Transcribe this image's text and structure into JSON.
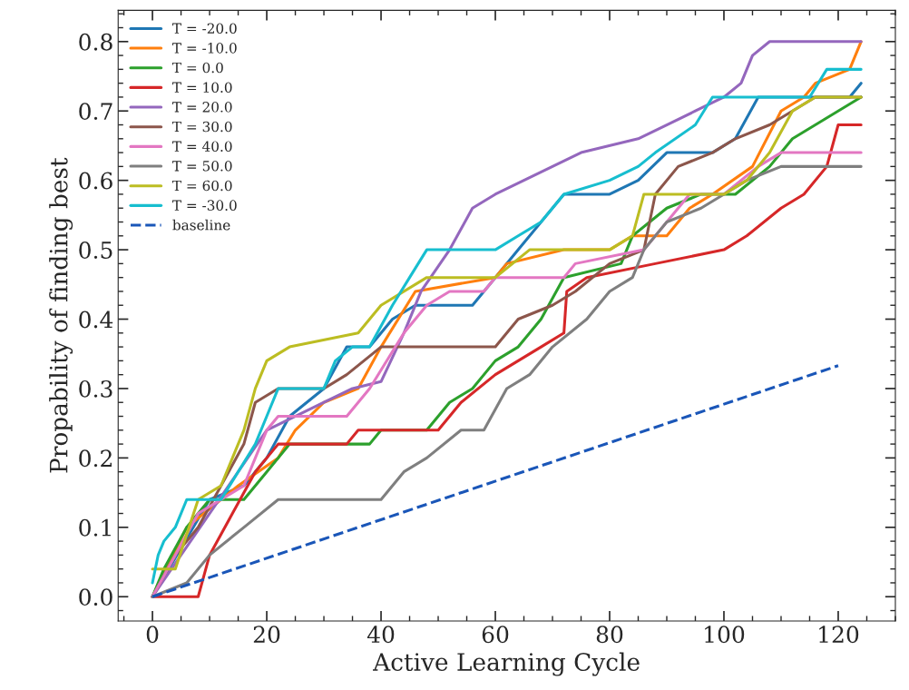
{
  "chart_data": {
    "type": "line",
    "xlabel": "Active Learning Cycle",
    "ylabel": "Propability of finding best",
    "xlim": [
      -6,
      130
    ],
    "ylim": [
      -0.035,
      0.845
    ],
    "xticks": [
      0,
      20,
      40,
      60,
      80,
      100,
      120
    ],
    "yticks": [
      {
        "value": 0,
        "label": "0.0"
      },
      0.1,
      0.2,
      0.3,
      0.4,
      0.5,
      0.6,
      0.7,
      0.8
    ],
    "grid": false,
    "legend": "top left",
    "marker": "none",
    "series": [
      {
        "name": "T = -20.0",
        "color": "#1f77b4",
        "x": [
          0,
          10,
          16,
          20,
          24,
          30,
          34,
          38,
          42,
          46,
          56,
          60,
          64,
          68,
          72,
          80,
          85,
          90,
          98,
          102,
          106,
          122,
          124
        ],
        "values": [
          0,
          0.14,
          0.16,
          0.2,
          0.26,
          0.3,
          0.36,
          0.36,
          0.4,
          0.42,
          0.42,
          0.46,
          0.5,
          0.54,
          0.58,
          0.58,
          0.6,
          0.64,
          0.64,
          0.66,
          0.72,
          0.72,
          0.74
        ]
      },
      {
        "name": "T = -10.0",
        "color": "#ff7f0e",
        "x": [
          0,
          6,
          15,
          22,
          25,
          30,
          36,
          40,
          46,
          60,
          62,
          72,
          80,
          84,
          90,
          94,
          98,
          105,
          110,
          114,
          116,
          122,
          124
        ],
        "values": [
          0,
          0.1,
          0.16,
          0.2,
          0.24,
          0.28,
          0.3,
          0.36,
          0.44,
          0.46,
          0.48,
          0.5,
          0.5,
          0.52,
          0.52,
          0.56,
          0.58,
          0.62,
          0.7,
          0.72,
          0.74,
          0.76,
          0.8
        ]
      },
      {
        "name": "T = 0.0",
        "color": "#2ca02c",
        "x": [
          0,
          2,
          6,
          10,
          16,
          20,
          24,
          38,
          40,
          48,
          52,
          56,
          60,
          64,
          68,
          72,
          82,
          84,
          90,
          96,
          102,
          108,
          112,
          116,
          120,
          124
        ],
        "values": [
          0,
          0.04,
          0.1,
          0.14,
          0.14,
          0.18,
          0.22,
          0.22,
          0.24,
          0.24,
          0.28,
          0.3,
          0.34,
          0.36,
          0.4,
          0.46,
          0.48,
          0.52,
          0.56,
          0.58,
          0.58,
          0.62,
          0.66,
          0.68,
          0.7,
          0.72
        ]
      },
      {
        "name": "T = 10.0",
        "color": "#d62728",
        "x": [
          0,
          8,
          10,
          14,
          18,
          22,
          34,
          36,
          50,
          54,
          60,
          64,
          68,
          72,
          72.5,
          76,
          88,
          100,
          104,
          110,
          114,
          118,
          120,
          124
        ],
        "values": [
          0,
          0,
          0.06,
          0.12,
          0.18,
          0.22,
          0.22,
          0.24,
          0.24,
          0.28,
          0.32,
          0.34,
          0.36,
          0.38,
          0.44,
          0.46,
          0.48,
          0.5,
          0.52,
          0.56,
          0.58,
          0.62,
          0.68,
          0.68
        ]
      },
      {
        "name": "T = 20.0",
        "color": "#9467bd",
        "x": [
          0,
          20,
          30,
          35,
          40,
          44,
          47,
          52,
          56,
          60,
          65,
          70,
          75,
          85,
          90,
          95,
          100,
          103,
          105,
          108,
          124
        ],
        "values": [
          0,
          0.24,
          0.28,
          0.3,
          0.31,
          0.38,
          0.44,
          0.5,
          0.56,
          0.58,
          0.6,
          0.62,
          0.64,
          0.66,
          0.68,
          0.7,
          0.72,
          0.74,
          0.78,
          0.8,
          0.8
        ]
      },
      {
        "name": "T = 30.0",
        "color": "#8c564b",
        "x": [
          0,
          4,
          8,
          12,
          16,
          18,
          22,
          30,
          34,
          40,
          60,
          64,
          70,
          74,
          80,
          86,
          88,
          92,
          98,
          102,
          108,
          112,
          116,
          124
        ],
        "values": [
          0,
          0.06,
          0.1,
          0.16,
          0.22,
          0.28,
          0.3,
          0.3,
          0.32,
          0.36,
          0.36,
          0.4,
          0.42,
          0.44,
          0.48,
          0.5,
          0.58,
          0.62,
          0.64,
          0.66,
          0.68,
          0.7,
          0.72,
          0.72
        ]
      },
      {
        "name": "T = 40.0",
        "color": "#e377c2",
        "x": [
          0,
          4,
          8,
          16,
          20,
          22,
          34,
          38,
          44,
          48,
          52,
          58,
          60,
          72,
          74,
          86,
          90,
          94,
          100,
          106,
          110,
          124
        ],
        "values": [
          0,
          0.06,
          0.12,
          0.16,
          0.24,
          0.26,
          0.26,
          0.3,
          0.38,
          0.42,
          0.44,
          0.44,
          0.46,
          0.46,
          0.48,
          0.5,
          0.54,
          0.58,
          0.58,
          0.62,
          0.64,
          0.64
        ]
      },
      {
        "name": "T = 50.0",
        "color": "#7f7f7f",
        "x": [
          0,
          6,
          10,
          16,
          22,
          40,
          44,
          48,
          54,
          58,
          62,
          66,
          70,
          76,
          80,
          84,
          86,
          90,
          96,
          100,
          104,
          110,
          124
        ],
        "values": [
          0,
          0.02,
          0.06,
          0.1,
          0.14,
          0.14,
          0.18,
          0.2,
          0.24,
          0.24,
          0.3,
          0.32,
          0.36,
          0.4,
          0.44,
          0.46,
          0.5,
          0.54,
          0.56,
          0.58,
          0.6,
          0.62,
          0.62
        ]
      },
      {
        "name": "T = 60.0",
        "color": "#bcbd22",
        "x": [
          0,
          4,
          8,
          12,
          16,
          18,
          20,
          24,
          36,
          40,
          48,
          60,
          66,
          80,
          84,
          86,
          100,
          104,
          108,
          112,
          116,
          124
        ],
        "values": [
          0.04,
          0.04,
          0.14,
          0.16,
          0.24,
          0.3,
          0.34,
          0.36,
          0.38,
          0.42,
          0.46,
          0.46,
          0.5,
          0.5,
          0.52,
          0.58,
          0.58,
          0.6,
          0.64,
          0.7,
          0.72,
          0.72
        ]
      },
      {
        "name": "T = -30.0",
        "color": "#17becf",
        "x": [
          0,
          1,
          2,
          4,
          6,
          12,
          18,
          20,
          22,
          30,
          32,
          35,
          38,
          42,
          45,
          48,
          60,
          64,
          68,
          72,
          80,
          85,
          88,
          95,
          98,
          115,
          118,
          124
        ],
        "values": [
          0.02,
          0.06,
          0.08,
          0.1,
          0.14,
          0.14,
          0.22,
          0.26,
          0.3,
          0.3,
          0.34,
          0.36,
          0.36,
          0.42,
          0.46,
          0.5,
          0.5,
          0.52,
          0.54,
          0.58,
          0.6,
          0.62,
          0.64,
          0.68,
          0.72,
          0.72,
          0.76,
          0.76
        ]
      },
      {
        "name": "baseline",
        "color": "#1a56b8",
        "line_style": "dashed",
        "x": [
          0,
          120
        ],
        "values": [
          0,
          0.333
        ]
      }
    ]
  }
}
